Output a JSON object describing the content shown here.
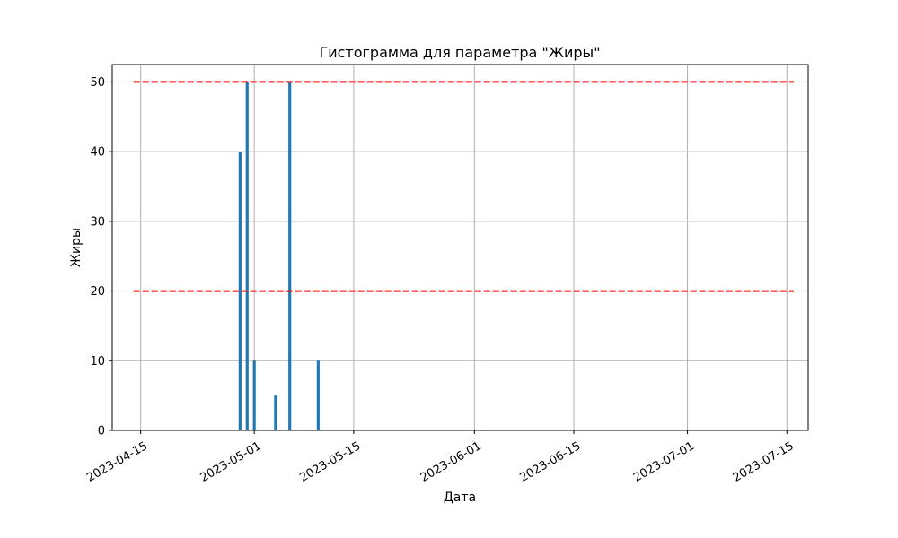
{
  "chart_data": {
    "type": "bar",
    "title": "Гистограмма для параметра \"Жиры\"",
    "xlabel": "Дата",
    "ylabel": "Жиры",
    "x_type": "date",
    "xlim": [
      "2023-04-11",
      "2023-07-18"
    ],
    "ylim": [
      0,
      52.5
    ],
    "x_ticks": [
      "2023-04-15",
      "2023-05-01",
      "2023-05-15",
      "2023-06-01",
      "2023-06-15",
      "2023-07-01",
      "2023-07-15"
    ],
    "y_ticks": [
      0,
      10,
      20,
      30,
      40,
      50
    ],
    "grid": true,
    "bars": [
      {
        "date": "2023-04-29",
        "value": 40
      },
      {
        "date": "2023-04-30",
        "value": 50
      },
      {
        "date": "2023-05-01",
        "value": 10
      },
      {
        "date": "2023-05-04",
        "value": 5
      },
      {
        "date": "2023-05-06",
        "value": 50
      },
      {
        "date": "2023-05-10",
        "value": 10
      }
    ],
    "thresholds": [
      {
        "value": 50,
        "from": "2023-04-14",
        "to": "2023-07-16",
        "color": "#ff0000",
        "style": "dashed"
      },
      {
        "value": 20,
        "from": "2023-04-14",
        "to": "2023-07-16",
        "color": "#ff0000",
        "style": "dashed"
      }
    ],
    "bar_color": "#1f77b4",
    "grid_color": "#b0b0b0"
  }
}
